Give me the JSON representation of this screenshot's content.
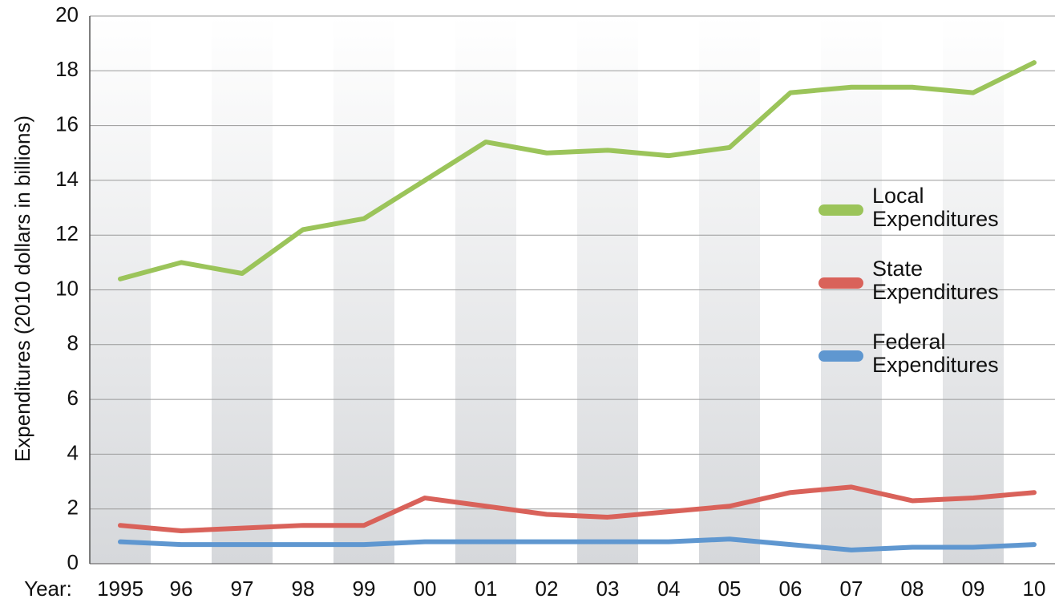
{
  "chart_data": {
    "type": "line",
    "y_label": "Expenditures (2010 dollars in billions)",
    "x_label": "Year:",
    "categories": [
      "1995",
      "96",
      "97",
      "98",
      "99",
      "00",
      "01",
      "02",
      "03",
      "04",
      "05",
      "06",
      "07",
      "08",
      "09",
      "10"
    ],
    "series": [
      {
        "name": "Local Expenditures",
        "color": "#9bc45a",
        "values": [
          10.4,
          11.0,
          10.6,
          12.2,
          12.6,
          14.0,
          15.4,
          15.0,
          15.1,
          14.9,
          15.2,
          17.2,
          17.4,
          17.4,
          17.2,
          18.3
        ]
      },
      {
        "name": "State Expenditures",
        "color": "#d9625a",
        "values": [
          1.4,
          1.2,
          1.3,
          1.4,
          1.4,
          2.4,
          2.1,
          1.8,
          1.7,
          1.9,
          2.1,
          2.6,
          2.8,
          2.3,
          2.4,
          2.6
        ]
      },
      {
        "name": "Federal Expenditures",
        "color": "#5f97d0",
        "values": [
          0.8,
          0.7,
          0.7,
          0.7,
          0.7,
          0.8,
          0.8,
          0.8,
          0.8,
          0.8,
          0.9,
          0.7,
          0.5,
          0.6,
          0.6,
          0.7
        ]
      }
    ],
    "ylim": [
      0,
      20
    ],
    "yticks": [
      0,
      2,
      4,
      6,
      8,
      10,
      12,
      14,
      16,
      18,
      20
    ],
    "grid": true
  }
}
